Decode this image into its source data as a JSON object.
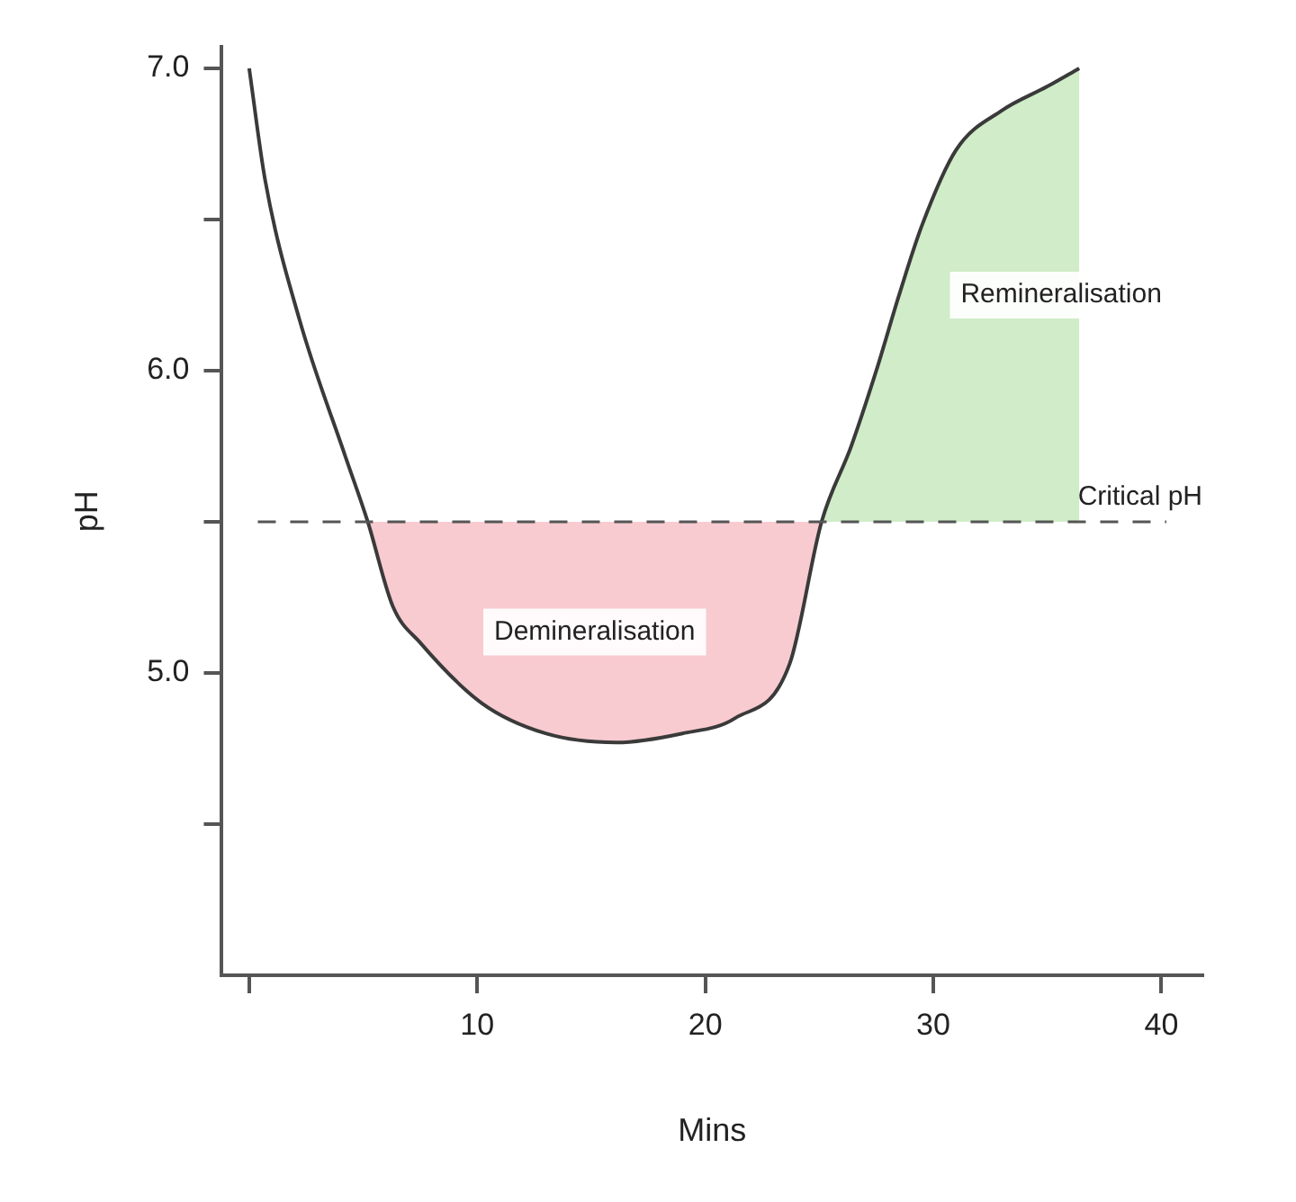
{
  "chart_data": {
    "type": "line",
    "xlabel": "Mins",
    "ylabel": "pH",
    "x": [
      0,
      0.7,
      2.2,
      4.2,
      5.2,
      6.3,
      7.5,
      10.2,
      13,
      16.1,
      19,
      21.3,
      23.7,
      25.1,
      26.4,
      27.5,
      28.5,
      29.5,
      31,
      33,
      35,
      36.4
    ],
    "series": [
      {
        "color": "#3a3a3a",
        "values": [
          7.0,
          6.63,
          6.17,
          5.72,
          5.5,
          5.22,
          5.1,
          4.9,
          4.8,
          4.77,
          4.8,
          4.85,
          5.03,
          5.5,
          5.75,
          6.0,
          6.25,
          6.48,
          6.73,
          6.86,
          6.94,
          7.0
        ]
      },
      {
        "type": "area",
        "name": "Demineralisation",
        "color": "#f2a1a9",
        "x": [
          5.2,
          6.3,
          7.5,
          10.2,
          13,
          16.1,
          19,
          21.3,
          23.7,
          25.1
        ],
        "values": [
          5.5,
          5.22,
          5.1,
          4.9,
          4.8,
          4.77,
          4.8,
          4.85,
          5.03,
          5.5
        ]
      },
      {
        "type": "area",
        "name": "Remineralisation",
        "color": "#a9dc9b",
        "x": [
          25.1,
          26.4,
          27.5,
          28.5,
          29.5,
          31,
          33,
          35,
          36.4
        ],
        "values": [
          5.5,
          5.75,
          6.0,
          6.25,
          6.48,
          6.73,
          6.86,
          6.94,
          7.0
        ]
      }
    ],
    "xlim": [
      -1.2,
      41.8
    ],
    "ylim": [
      4.0,
      7.07
    ],
    "xticks": [
      {
        "value": 0,
        "label": null
      },
      10,
      20,
      30,
      40
    ],
    "yticks": [
      {
        "value": 4.5,
        "label": null
      },
      {
        "value": 5,
        "label": "5.0"
      },
      {
        "value": 5.5,
        "label": null
      },
      {
        "value": 6,
        "label": "6.0"
      },
      {
        "value": 6.5,
        "label": null
      },
      {
        "value": 7,
        "label": "7.0"
      }
    ],
    "ref_lines": [
      {
        "axis": "y",
        "value": 5.5,
        "label": "Critical pH",
        "line_style": "dashed",
        "color": "#555555"
      }
    ],
    "grid": false,
    "legend": false,
    "marker": "none",
    "line_style": "solid"
  }
}
